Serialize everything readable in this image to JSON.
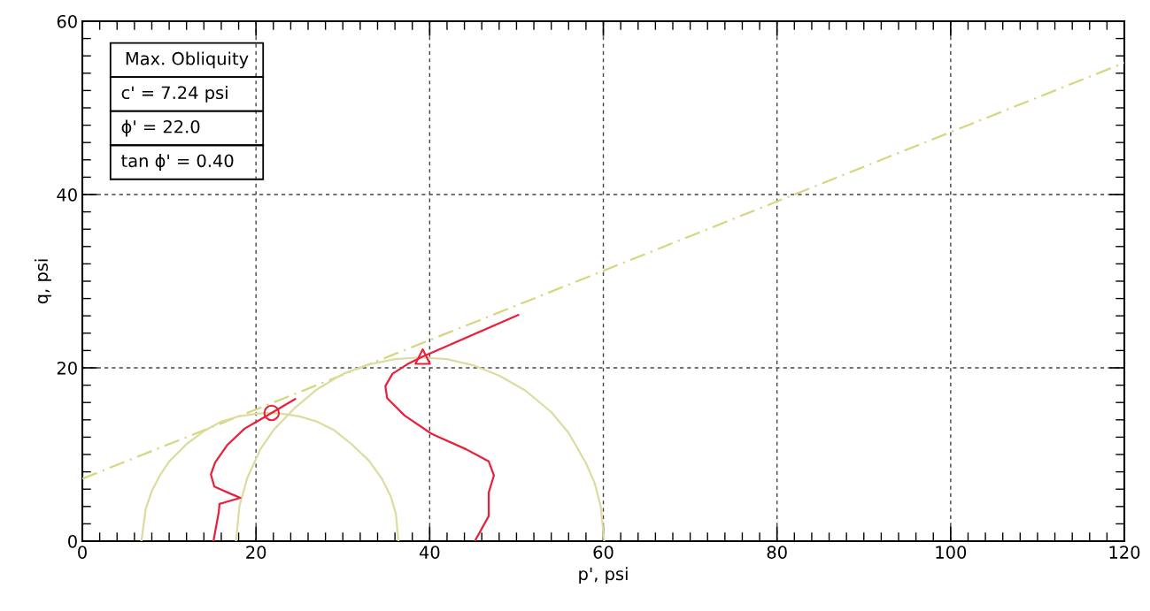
{
  "chart_data": {
    "type": "line",
    "xlabel": "p', psi",
    "ylabel": "q, psi",
    "xlim": [
      0,
      120
    ],
    "ylim": [
      0,
      60
    ],
    "xticks": [
      0,
      20,
      40,
      60,
      80,
      100,
      120
    ],
    "yticks": [
      0,
      20,
      40,
      60
    ],
    "grid": true,
    "legend": false,
    "annotations": [
      "Max. Obliquity",
      "c' = 7.24 psi",
      "ϕ' = 22.0",
      "tan ϕ' = 0.40"
    ],
    "series": [
      {
        "color": "#d6d680",
        "line_style": "dashed",
        "marker": "none",
        "x": [
          0,
          120
        ],
        "values": [
          7.2,
          55.2
        ]
      },
      {
        "color": "#dcdca0",
        "line_style": "solid",
        "marker": "none",
        "x": [
          6.8,
          7.3,
          8,
          9,
          10,
          12,
          14,
          16,
          18,
          20,
          21.6,
          23,
          25,
          27,
          29,
          31,
          33,
          34.5,
          35.5,
          36.1,
          36.4
        ],
        "values": [
          0,
          3.7,
          5.8,
          7.7,
          9.2,
          11.2,
          12.7,
          13.8,
          14.4,
          14.7,
          14.8,
          14.7,
          14.4,
          13.8,
          12.8,
          11.2,
          9.3,
          7.2,
          5.2,
          3.2,
          0
        ]
      },
      {
        "color": "#dcdca0",
        "line_style": "solid",
        "marker": "none",
        "x": [
          17.7,
          18.1,
          19,
          20.5,
          22,
          24.5,
          27,
          30,
          33,
          36,
          38.9,
          42,
          45,
          48,
          51,
          54,
          56,
          58,
          59,
          59.7,
          60.1
        ],
        "values": [
          0,
          4.1,
          7.3,
          10.6,
          12.8,
          15.4,
          17.5,
          19.3,
          20.4,
          21.0,
          21.2,
          21.0,
          20.3,
          19.1,
          17.4,
          14.9,
          12.5,
          9.0,
          6.7,
          4.0,
          0
        ]
      },
      {
        "color": "#e8203a",
        "line_style": "solid",
        "marker": "none",
        "x": [
          15.1,
          15.7,
          15.8,
          18.2,
          17.0,
          15.2,
          14.8,
          15.3,
          16.7,
          18.7,
          20.1,
          21.8,
          24.5
        ],
        "values": [
          0,
          3.3,
          4.3,
          5.0,
          5.5,
          6.3,
          7.7,
          9.1,
          11.1,
          13.0,
          13.8,
          14.8,
          16.4
        ]
      },
      {
        "color": "#e8203a",
        "line_style": "solid",
        "marker": "none",
        "x": [
          45.2,
          46.8,
          46.8,
          47.4,
          46.8,
          44.2,
          40.2,
          37.1,
          35.1,
          34.9,
          35.7,
          37.4,
          39.2,
          41.5,
          50.2
        ],
        "values": [
          0,
          2.9,
          5.6,
          7.6,
          9.2,
          10.6,
          12.4,
          14.5,
          16.5,
          17.9,
          19.3,
          20.4,
          21.3,
          22.3,
          26.1
        ]
      },
      {
        "type": "scatter",
        "color": "#e8203a",
        "marker": "circle",
        "x": [
          21.8
        ],
        "values": [
          14.8
        ]
      },
      {
        "type": "scatter",
        "color": "#e8203a",
        "marker": "triangle",
        "x": [
          39.2
        ],
        "values": [
          21.3
        ]
      }
    ]
  }
}
